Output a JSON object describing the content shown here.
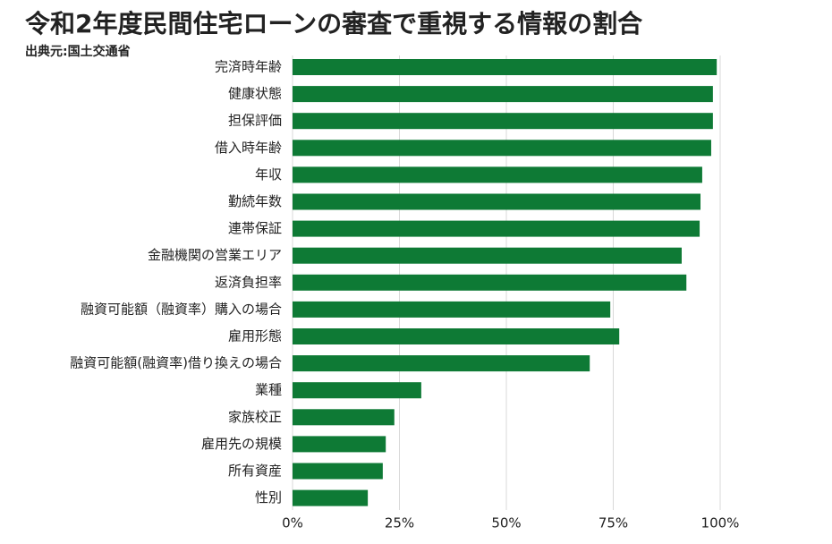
{
  "chart_data": {
    "type": "hbar",
    "title": "令和2年度民間住宅ローンの審査で重視する情報の割合",
    "source": "出典元:国土交通省",
    "categories": [
      "完済時年齢",
      "健康状態",
      "担保評価",
      "借入時年齢",
      "年収",
      "勤続年数",
      "連帯保証",
      "金融機関の営業エリア",
      "返済負担率",
      "融資可能額（融資率）購入の場合",
      "雇用形態",
      "融資可能額(融資率)借り換えの場合",
      "業種",
      "家族校正",
      "雇用先の規模",
      "所有資産",
      "性別"
    ],
    "values": [
      99.2,
      98.3,
      98.3,
      97.9,
      95.8,
      95.4,
      95.2,
      91.0,
      92.1,
      74.3,
      76.4,
      69.5,
      30.1,
      23.8,
      21.8,
      21.1,
      17.6
    ],
    "color": "#0e7a35",
    "xlim": [
      0,
      100
    ],
    "xticks": [
      {
        "value": 0,
        "label": "0%"
      },
      {
        "value": 25,
        "label": "25%"
      },
      {
        "value": 50,
        "label": "50%"
      },
      {
        "value": 75,
        "label": "75%"
      },
      {
        "value": 100,
        "label": "100%"
      }
    ],
    "grid": true
  }
}
